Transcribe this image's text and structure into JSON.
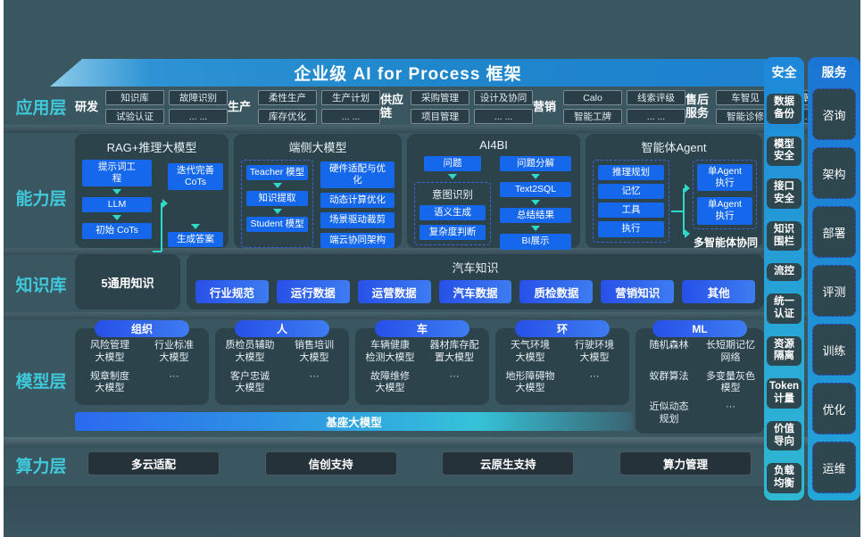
{
  "title": "企业级 AI for Process 框架",
  "layer_labels": [
    "应用层",
    "能力层",
    "知识库",
    "模型层",
    "算力层"
  ],
  "app_layer": {
    "groups": [
      {
        "label": "研发",
        "items": [
          "知识库",
          "故障识别",
          "试验认证",
          "... ..."
        ]
      },
      {
        "label": "生产",
        "items": [
          "柔性生产",
          "生产计划",
          "库存优化",
          "... ..."
        ]
      },
      {
        "label": "供应链",
        "items": [
          "采购管理",
          "设计及协同",
          "项目管理",
          "... ..."
        ]
      },
      {
        "label": "营销",
        "items": [
          "Calo",
          "线索评级",
          "智能工牌",
          "... ..."
        ]
      },
      {
        "label": "售后服务",
        "items": [
          "车智见",
          "故障预警",
          "智能诊修",
          "... ..."
        ]
      }
    ]
  },
  "capability_layer": {
    "rag": {
      "title": "RAG+推理大模型",
      "steps": [
        "提示词工\n程",
        "LLM",
        "初始 CoTs"
      ],
      "right": [
        "迭代完善\nCoTs",
        "生成答案"
      ]
    },
    "edge": {
      "title": "端侧大模型",
      "distill": [
        "Teacher 模型",
        "知识提取",
        "Student 模型"
      ],
      "right": [
        "硬件适配与优\n化",
        "动态计算优化",
        "场景驱动裁剪",
        "端云协同架构"
      ]
    },
    "ai4bi": {
      "title": "AI4BI",
      "left_top": "问题",
      "intent_title": "意图识别",
      "intent_items": [
        "语义生成",
        "复杂度判断"
      ],
      "right": [
        "问题分解",
        "Text2SQL",
        "总结结果",
        "BI展示"
      ]
    },
    "agent": {
      "title": "智能体Agent",
      "modules": [
        "推理规划",
        "记忆",
        "工具",
        "执行"
      ],
      "executors": [
        "单Agent\n执行",
        "单Agent\n执行"
      ],
      "caption": "多智能体协同"
    }
  },
  "knowledge_layer": {
    "general": "5通用知识",
    "auto_title": "汽车知识",
    "pills": [
      "行业规范",
      "运行数据",
      "运营数据",
      "汽车数据",
      "质检数据",
      "营销知识",
      "其他"
    ]
  },
  "model_layer": {
    "groups": [
      {
        "label": "组织",
        "items": [
          "风险管理\n大模型",
          "行业标准\n大模型",
          "规章制度\n大模型",
          "···"
        ]
      },
      {
        "label": "人",
        "items": [
          "质检员辅助\n大模型",
          "销售培训\n大模型",
          "客户忠诚\n大模型",
          "···"
        ]
      },
      {
        "label": "车",
        "items": [
          "车辆健康\n检测大模型",
          "器材库存配\n置大模型",
          "故障维修\n大模型",
          "···"
        ]
      },
      {
        "label": "环",
        "items": [
          "天气环境\n大模型",
          "行驶环境\n大模型",
          "地形障碍物\n大模型",
          "···"
        ]
      },
      {
        "label": "ML",
        "items": [
          "随机森林",
          "长短期记忆\n网络",
          "蚁群算法",
          "多变量灰色\n模型",
          "近似动态\n规划",
          "···"
        ]
      }
    ],
    "base_bar": "基座大模型"
  },
  "compute_layer": {
    "items": [
      "多云适配",
      "信创支持",
      "云原生支持",
      "算力管理"
    ]
  },
  "security_column": {
    "title": "安全",
    "items": [
      "数据\n备份",
      "模型\n安全",
      "接口\n安全",
      "知识\n围栏",
      "流控",
      "统一\n认证",
      "资源\n隔离",
      "Token\n计量",
      "价值\n导向",
      "负载\n均衡"
    ]
  },
  "service_column": {
    "title": "服务",
    "items": [
      "咨询",
      "架构",
      "部署",
      "评测",
      "训练",
      "优化",
      "运维"
    ]
  },
  "colors": {
    "background": "#3a5661",
    "panel": "#2c434b",
    "accent_blue": "#1568eb",
    "pill_gradient_start": "#2750e8",
    "pill_gradient_end": "#3d7cf2",
    "cyan_label": "#3fc9da",
    "arrow_cyan": "#2fd9c9",
    "banner_blue": "#1f86cc",
    "security_gradient_top": "#1d87d9",
    "security_gradient_bottom": "#2fb9d2"
  }
}
